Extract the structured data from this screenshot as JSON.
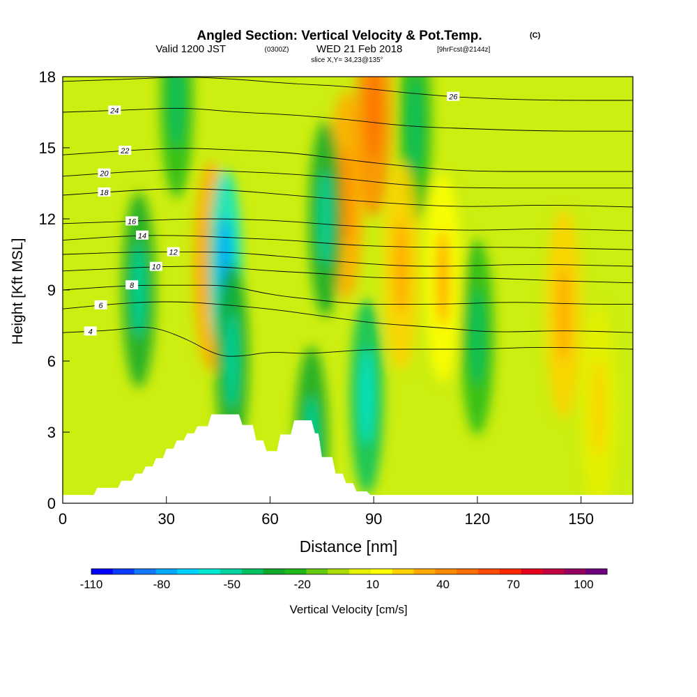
{
  "title": {
    "main": "Angled Section: Vertical Velocity & Pot.Temp.",
    "main_units": "(C)",
    "valid_prefix": "Valid 1200 JST",
    "valid_utc": "(0300Z)",
    "valid_date": "WED 21 Feb 2018",
    "forecast": "[9hrFcst@2144z]",
    "slice": "slice X,Y= 34,23@135°"
  },
  "chart_data": {
    "type": "heatmap",
    "xlabel": "Distance [nm]",
    "ylabel": "Height [Kft MSL]",
    "xlim": [
      0,
      165
    ],
    "ylim": [
      0,
      18
    ],
    "x_ticks": [
      "0",
      "30",
      "60",
      "90",
      "120",
      "150"
    ],
    "y_ticks": [
      "0",
      "3",
      "6",
      "9",
      "12",
      "15",
      "18"
    ],
    "colorbar": {
      "label": "Vertical Velocity [cm/s]",
      "range": [
        -110,
        110
      ],
      "step": 10,
      "tick_labels": [
        "-110",
        "-80",
        "-50",
        "-20",
        "10",
        "40",
        "70",
        "100"
      ],
      "colors": [
        "#0000ff",
        "#0a3cff",
        "#1478ff",
        "#00a8ff",
        "#00d2ff",
        "#00e6d2",
        "#00d2a0",
        "#00c060",
        "#10a828",
        "#20b818",
        "#66cc11",
        "#aadd00",
        "#e6f000",
        "#ffff00",
        "#ffd200",
        "#ffaa00",
        "#ff8c00",
        "#ff6e00",
        "#ff4a00",
        "#ff2800",
        "#e6001e",
        "#c00040",
        "#960060",
        "#6e0080"
      ]
    },
    "velocity_features": [
      {
        "kind": "updraft",
        "x": 43,
        "y": 10,
        "peak": 40
      },
      {
        "kind": "downdraft",
        "x": 47,
        "y": 10,
        "peak": -60
      },
      {
        "kind": "downdraft",
        "x": 49,
        "y": 6,
        "peak": -30
      },
      {
        "kind": "downdraft",
        "x": 22,
        "y": 9,
        "peak": -25
      },
      {
        "kind": "updraft",
        "x": 82,
        "y": 13,
        "peak": 40
      },
      {
        "kind": "downdraft",
        "x": 76,
        "y": 12,
        "peak": -25
      },
      {
        "kind": "updraft",
        "x": 90,
        "y": 16.5,
        "peak": 50
      },
      {
        "kind": "downdraft",
        "x": 88,
        "y": 4.5,
        "peak": -35
      },
      {
        "kind": "downdraft",
        "x": 102,
        "y": 16,
        "peak": -20
      },
      {
        "kind": "downdraft",
        "x": 33,
        "y": 17,
        "peak": -20
      },
      {
        "kind": "updraft",
        "x": 98,
        "y": 10,
        "peak": 30
      },
      {
        "kind": "updraft",
        "x": 110,
        "y": 9.5,
        "peak": 25
      },
      {
        "kind": "updraft",
        "x": 145,
        "y": 8,
        "peak": 30
      },
      {
        "kind": "updraft",
        "x": 155,
        "y": 4,
        "peak": 15
      },
      {
        "kind": "downdraft",
        "x": 120,
        "y": 7,
        "peak": -20
      },
      {
        "kind": "downdraft",
        "x": 72,
        "y": 2.5,
        "peak": -25
      }
    ],
    "isentropes": [
      {
        "label": "4",
        "points": [
          [
            0,
            7.2
          ],
          [
            15,
            7.3
          ],
          [
            25,
            7.5
          ],
          [
            35,
            7.0
          ],
          [
            45,
            6.2
          ],
          [
            52,
            6.2
          ],
          [
            60,
            6.4
          ],
          [
            70,
            6.3
          ],
          [
            80,
            6.4
          ],
          [
            90,
            6.5
          ],
          [
            110,
            6.5
          ],
          [
            120,
            6.5
          ],
          [
            140,
            6.6
          ],
          [
            165,
            6.5
          ]
        ],
        "label_x": 8
      },
      {
        "label": "6",
        "points": [
          [
            0,
            8.2
          ],
          [
            14,
            8.4
          ],
          [
            25,
            8.5
          ],
          [
            35,
            8.5
          ],
          [
            45,
            8.4
          ],
          [
            60,
            8.2
          ],
          [
            70,
            8.0
          ],
          [
            80,
            7.8
          ],
          [
            90,
            7.6
          ],
          [
            110,
            7.4
          ],
          [
            125,
            7.2
          ],
          [
            145,
            7.3
          ],
          [
            165,
            7.2
          ]
        ],
        "label_x": 11
      },
      {
        "label": "8",
        "points": [
          [
            0,
            9.0
          ],
          [
            20,
            9.2
          ],
          [
            35,
            9.2
          ],
          [
            48,
            9.2
          ],
          [
            60,
            8.8
          ],
          [
            72,
            8.6
          ],
          [
            85,
            8.4
          ],
          [
            95,
            8.4
          ],
          [
            112,
            8.4
          ],
          [
            130,
            8.5
          ],
          [
            150,
            8.4
          ],
          [
            165,
            8.4
          ]
        ],
        "label_x": 20
      },
      {
        "label": "10",
        "points": [
          [
            0,
            9.8
          ],
          [
            15,
            9.9
          ],
          [
            30,
            10.0
          ],
          [
            45,
            10.0
          ],
          [
            60,
            9.8
          ],
          [
            75,
            9.7
          ],
          [
            90,
            9.5
          ],
          [
            112,
            9.5
          ],
          [
            125,
            9.5
          ],
          [
            140,
            9.4
          ],
          [
            165,
            9.3
          ]
        ],
        "label_x": 27
      },
      {
        "label": "12",
        "points": [
          [
            0,
            10.5
          ],
          [
            20,
            10.6
          ],
          [
            35,
            10.6
          ],
          [
            48,
            10.6
          ],
          [
            65,
            10.4
          ],
          [
            80,
            10.2
          ],
          [
            98,
            10.0
          ],
          [
            115,
            10.0
          ],
          [
            135,
            10.1
          ],
          [
            165,
            10.0
          ]
        ],
        "label_x": 32
      },
      {
        "label": "14",
        "points": [
          [
            0,
            11.1
          ],
          [
            20,
            11.3
          ],
          [
            35,
            11.3
          ],
          [
            50,
            11.2
          ],
          [
            66,
            11.1
          ],
          [
            82,
            10.9
          ],
          [
            100,
            10.8
          ],
          [
            118,
            10.8
          ],
          [
            135,
            10.8
          ],
          [
            165,
            10.7
          ]
        ],
        "label_x": 23
      },
      {
        "label": "16",
        "points": [
          [
            0,
            11.8
          ],
          [
            20,
            11.9
          ],
          [
            35,
            12.0
          ],
          [
            50,
            12.0
          ],
          [
            66,
            11.9
          ],
          [
            82,
            11.7
          ],
          [
            100,
            11.6
          ],
          [
            118,
            11.5
          ],
          [
            140,
            11.6
          ],
          [
            165,
            11.5
          ]
        ],
        "label_x": 20
      },
      {
        "label": "18",
        "points": [
          [
            0,
            13.0
          ],
          [
            20,
            13.2
          ],
          [
            35,
            13.3
          ],
          [
            50,
            13.2
          ],
          [
            66,
            13.0
          ],
          [
            82,
            12.8
          ],
          [
            100,
            12.6
          ],
          [
            118,
            12.5
          ],
          [
            140,
            12.6
          ],
          [
            165,
            12.5
          ]
        ],
        "label_x": 12
      },
      {
        "label": "20",
        "points": [
          [
            0,
            13.8
          ],
          [
            20,
            14.0
          ],
          [
            35,
            14.1
          ],
          [
            50,
            14.0
          ],
          [
            66,
            13.9
          ],
          [
            82,
            13.7
          ],
          [
            100,
            13.4
          ],
          [
            118,
            13.3
          ],
          [
            140,
            13.3
          ],
          [
            165,
            13.3
          ]
        ],
        "label_x": 12
      },
      {
        "label": "22",
        "points": [
          [
            0,
            14.7
          ],
          [
            20,
            14.9
          ],
          [
            35,
            15.0
          ],
          [
            50,
            14.9
          ],
          [
            66,
            14.8
          ],
          [
            82,
            14.5
          ],
          [
            100,
            14.2
          ],
          [
            118,
            14.0
          ],
          [
            140,
            14.0
          ],
          [
            165,
            14.0
          ]
        ],
        "label_x": 18
      },
      {
        "label": "24",
        "points": [
          [
            0,
            16.5
          ],
          [
            20,
            16.6
          ],
          [
            35,
            16.7
          ],
          [
            50,
            16.5
          ],
          [
            66,
            16.4
          ],
          [
            82,
            16.2
          ],
          [
            100,
            15.9
          ],
          [
            118,
            15.8
          ],
          [
            140,
            15.7
          ],
          [
            165,
            15.7
          ]
        ],
        "label_x": 15
      },
      {
        "label": "26",
        "points": [
          [
            0,
            17.8
          ],
          [
            20,
            17.9
          ],
          [
            35,
            18.0
          ],
          [
            50,
            17.9
          ],
          [
            66,
            17.7
          ],
          [
            82,
            17.6
          ],
          [
            100,
            17.3
          ],
          [
            118,
            17.1
          ],
          [
            140,
            17.0
          ],
          [
            165,
            17.0
          ]
        ],
        "label_x": 113
      }
    ],
    "terrain": [
      [
        0,
        0.35
      ],
      [
        9,
        0.35
      ],
      [
        10,
        0.65
      ],
      [
        16,
        0.65
      ],
      [
        17,
        0.95
      ],
      [
        20,
        0.95
      ],
      [
        21,
        1.25
      ],
      [
        23,
        1.25
      ],
      [
        24,
        1.55
      ],
      [
        26,
        1.55
      ],
      [
        27,
        1.9
      ],
      [
        29,
        1.9
      ],
      [
        30,
        2.3
      ],
      [
        32,
        2.3
      ],
      [
        33,
        2.65
      ],
      [
        35,
        2.65
      ],
      [
        36,
        2.95
      ],
      [
        38,
        2.95
      ],
      [
        39,
        3.25
      ],
      [
        42,
        3.25
      ],
      [
        43,
        3.75
      ],
      [
        51,
        3.75
      ],
      [
        52,
        3.3
      ],
      [
        55,
        3.3
      ],
      [
        56,
        2.65
      ],
      [
        58,
        2.65
      ],
      [
        59,
        2.2
      ],
      [
        62,
        2.2
      ],
      [
        63,
        2.9
      ],
      [
        66,
        2.9
      ],
      [
        67,
        3.5
      ],
      [
        72,
        3.5
      ],
      [
        73,
        2.95
      ],
      [
        74,
        2.95
      ],
      [
        75,
        1.95
      ],
      [
        78,
        1.95
      ],
      [
        79,
        1.25
      ],
      [
        81,
        1.25
      ],
      [
        82,
        0.85
      ],
      [
        84,
        0.85
      ],
      [
        85,
        0.5
      ],
      [
        88,
        0.5
      ],
      [
        89,
        0.35
      ],
      [
        165,
        0.35
      ]
    ]
  }
}
